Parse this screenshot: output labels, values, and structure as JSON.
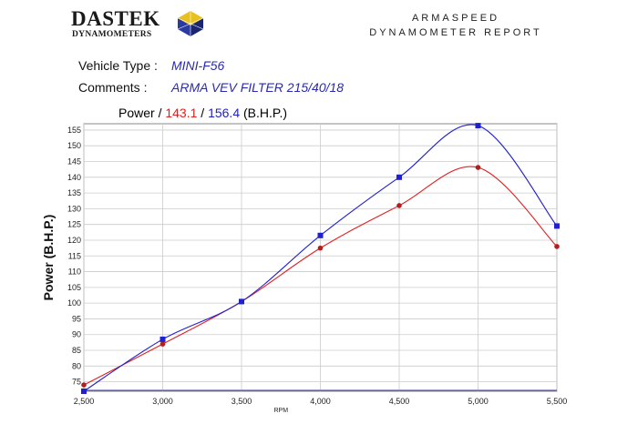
{
  "logo": {
    "word": "DASTEK",
    "sub": "DYNAMOMETERS"
  },
  "report": {
    "line1": "ARMASPEED",
    "line2": "DYNAMOMETER REPORT"
  },
  "vehicle": {
    "label": "Vehicle Type :",
    "value": "MINI-F56"
  },
  "comments": {
    "label": "Comments :",
    "value": "ARMA VEV FILTER 215/40/18"
  },
  "legend": {
    "prefix": "Power /",
    "red_value": "143.1",
    "sep": "/",
    "blue_value": "156.4",
    "unit": "(B.H.P.)"
  },
  "colors": {
    "red": "#e02020",
    "blue": "#2020d0",
    "grid": "#cccccc"
  },
  "chart_data": {
    "type": "line",
    "title": "",
    "xlabel": "RPM",
    "ylabel": "Power (B.H.P.)",
    "xlim": [
      2500,
      5500
    ],
    "ylim": [
      72,
      157
    ],
    "x_ticks": [
      "2,500",
      "3,000",
      "3,500",
      "4,000",
      "4,500",
      "5,000",
      "5,500"
    ],
    "x_tick_values": [
      2500,
      3000,
      3500,
      4000,
      4500,
      5000,
      5500
    ],
    "y_ticks": [
      75,
      80,
      85,
      90,
      95,
      100,
      105,
      110,
      115,
      120,
      125,
      130,
      135,
      140,
      145,
      150,
      155
    ],
    "grid": true,
    "series": [
      {
        "name": "143.1",
        "color": "#e02020",
        "marker": "circle",
        "points": [
          [
            2500,
            74
          ],
          [
            3000,
            87
          ],
          [
            3500,
            100.5
          ],
          [
            4000,
            117.5
          ],
          [
            4500,
            131
          ],
          [
            5000,
            143.1
          ],
          [
            5500,
            118
          ]
        ]
      },
      {
        "name": "156.4",
        "color": "#2020d0",
        "marker": "square",
        "points": [
          [
            2500,
            72
          ],
          [
            3000,
            88.5
          ],
          [
            3500,
            100.5
          ],
          [
            4000,
            121.5
          ],
          [
            4500,
            140
          ],
          [
            5000,
            156.4
          ],
          [
            5500,
            124.5
          ]
        ]
      }
    ]
  }
}
